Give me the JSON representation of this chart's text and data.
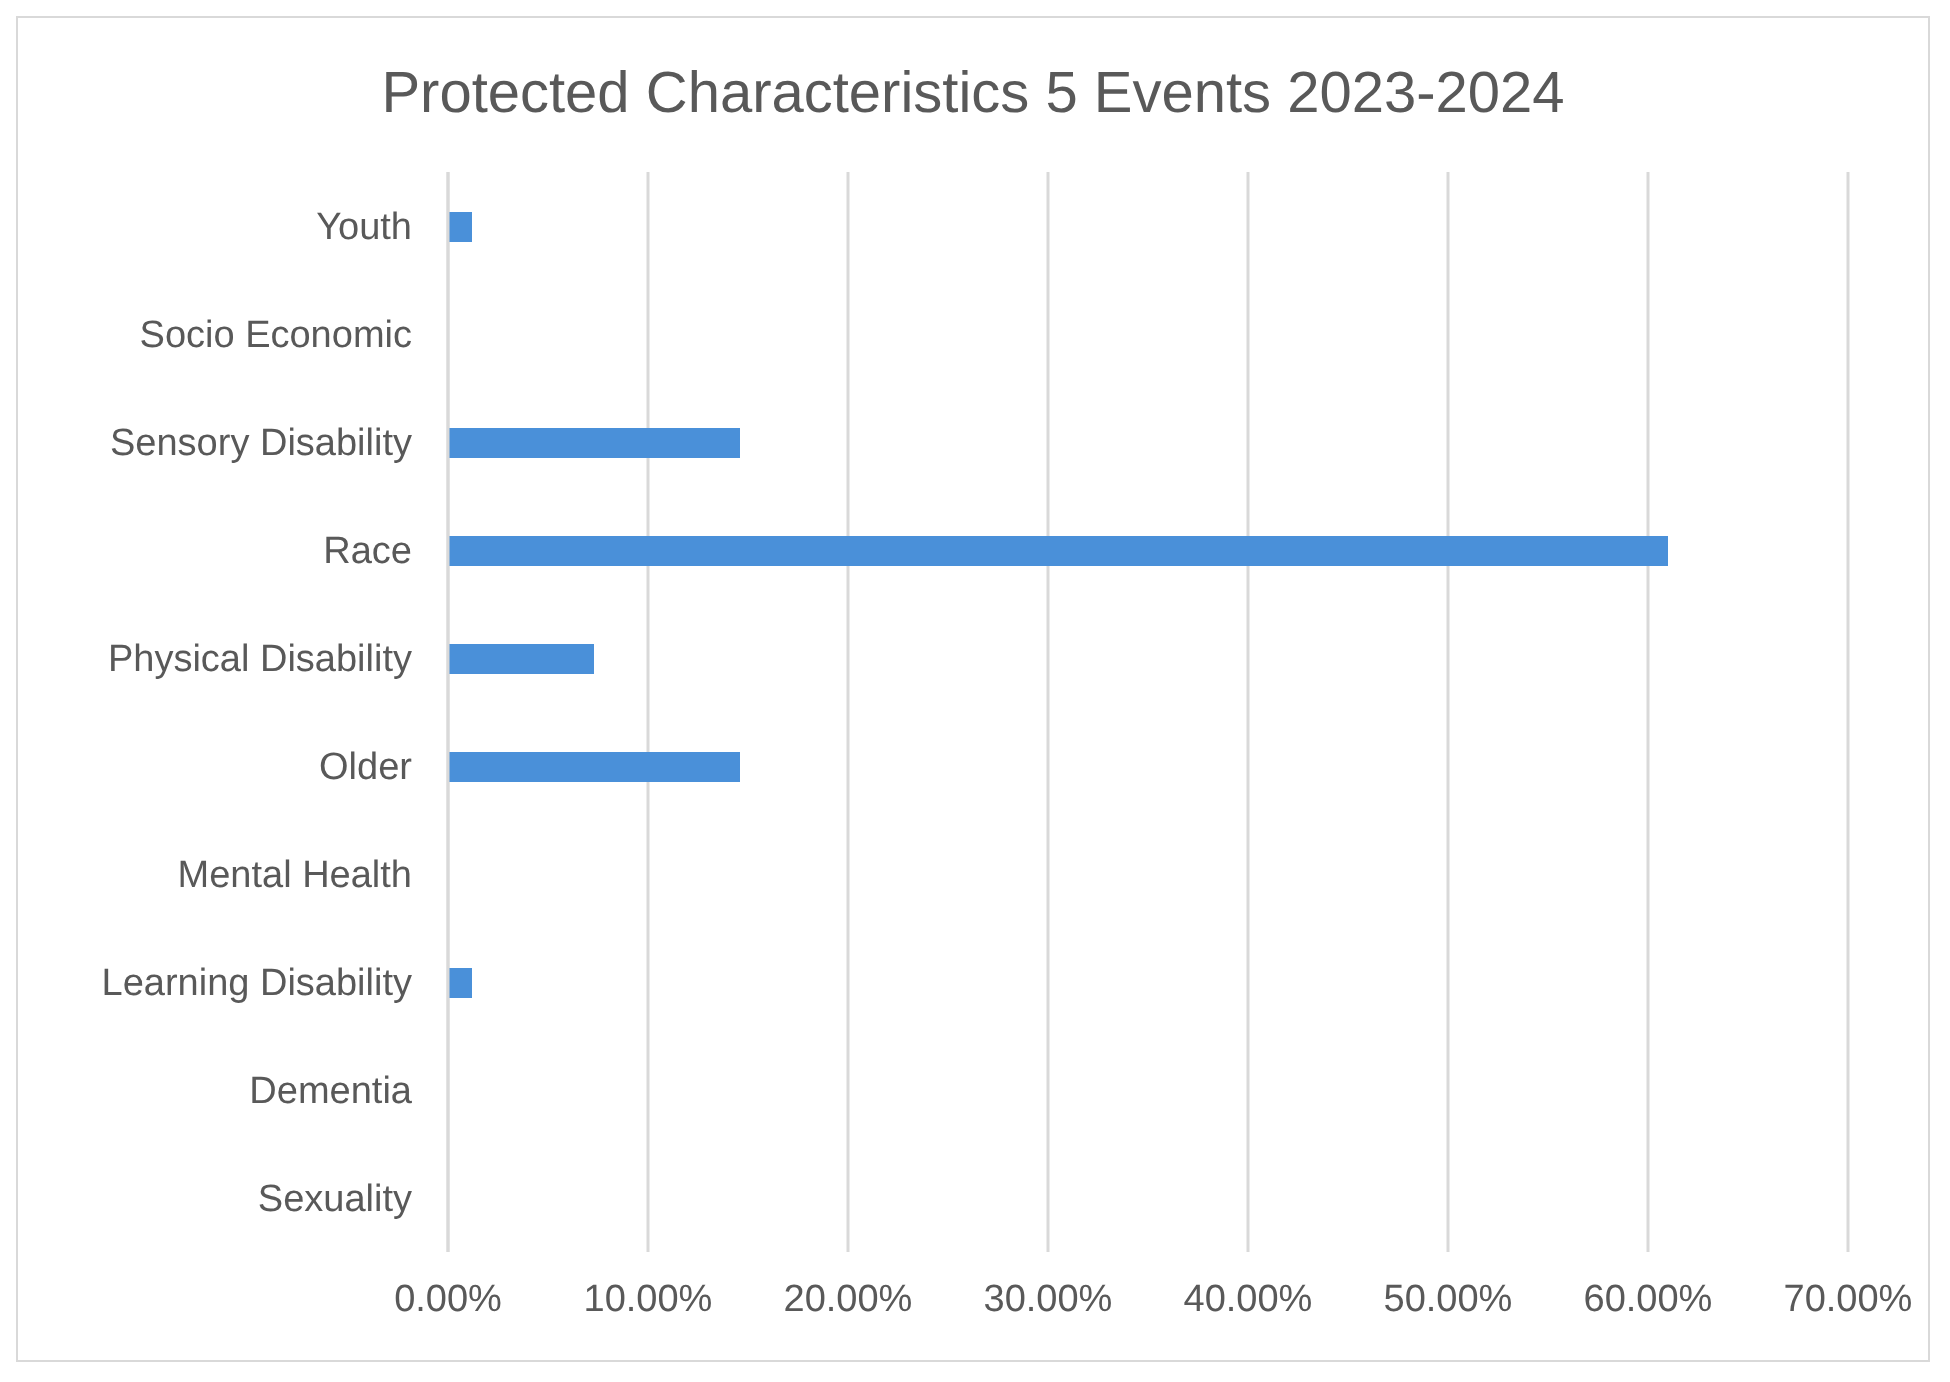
{
  "chart_data": {
    "type": "bar",
    "orientation": "horizontal",
    "title": "Protected Characteristics 5 Events 2023-2024",
    "categories": [
      "Youth",
      "Socio Economic",
      "Sensory Disability",
      "Race",
      "Physical Disability",
      "Older",
      "Mental Health",
      "Learning Disability",
      "Dementia",
      "Sexuality"
    ],
    "values": [
      1.2,
      0,
      14.6,
      61.0,
      7.3,
      14.6,
      0,
      1.2,
      0,
      0
    ],
    "color": "#4a90d9",
    "xlim": [
      0,
      70
    ],
    "xticks": [
      {
        "value": 0,
        "label": "0.00%"
      },
      {
        "value": 10,
        "label": "10.00%"
      },
      {
        "value": 20,
        "label": "20.00%"
      },
      {
        "value": 30,
        "label": "30.00%"
      },
      {
        "value": 40,
        "label": "40.00%"
      },
      {
        "value": 50,
        "label": "50.00%"
      },
      {
        "value": 60,
        "label": "60.00%"
      },
      {
        "value": 70,
        "label": "70.00%"
      }
    ],
    "grid": "x"
  }
}
